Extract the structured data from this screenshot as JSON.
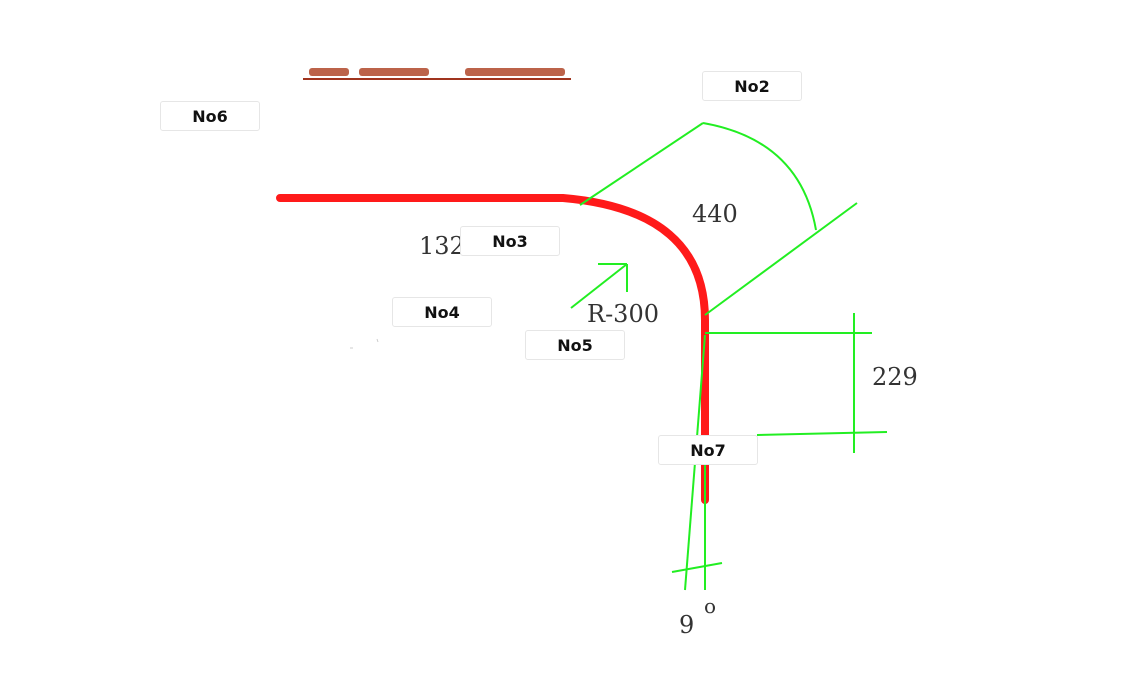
{
  "labels": {
    "no2": "No2",
    "no3": "No3",
    "no4": "No4",
    "no5": "No5",
    "no6": "No6",
    "no7": "No7"
  },
  "dimensions": {
    "arc_length": "440",
    "straight_length": "132",
    "radius": "R-300",
    "vertical_offset": "229",
    "angle_value": "9",
    "angle_unit": "o"
  },
  "colors": {
    "rebar": "#ff1a1a",
    "dimension_lines": "#22ee22",
    "title_partial": "#a0341e"
  }
}
